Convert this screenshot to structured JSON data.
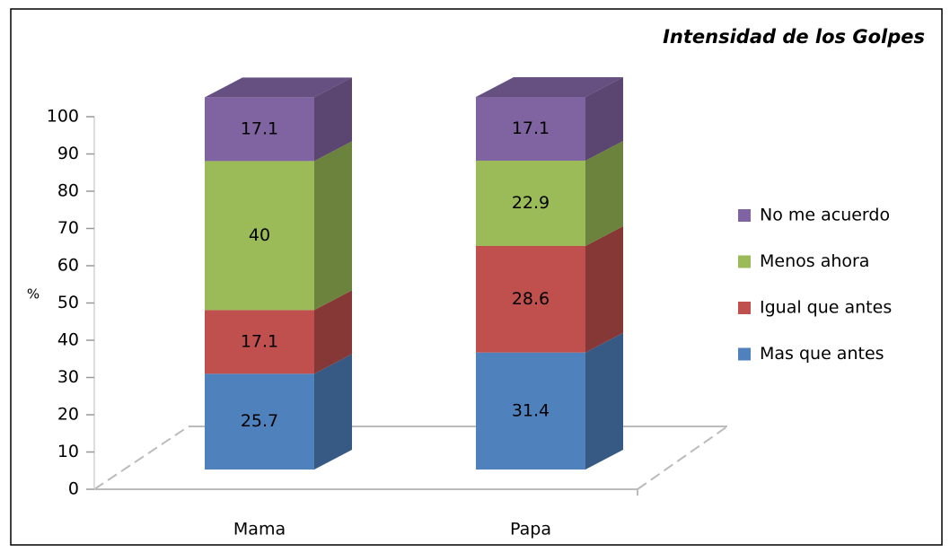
{
  "chart_data": {
    "type": "bar3d_stacked",
    "title": "Intensidad de los Golpes",
    "y_label": "%",
    "categories": [
      "Mama",
      "Papa"
    ],
    "series": [
      {
        "name": "Mas que antes",
        "color": "#4f81bd",
        "values": [
          25.7,
          31.4
        ]
      },
      {
        "name": "Igual que antes",
        "color": "#c0504d",
        "values": [
          17.1,
          28.6
        ]
      },
      {
        "name": "Menos ahora",
        "color": "#9bbb59",
        "values": [
          40,
          22.9
        ]
      },
      {
        "name": "No me acuerdo",
        "color": "#8064a2",
        "values": [
          17.1,
          17.1
        ]
      }
    ],
    "ylim": [
      0,
      100
    ],
    "yticks": [
      0,
      10,
      20,
      30,
      40,
      50,
      60,
      70,
      80,
      90,
      100
    ],
    "legend": "right"
  }
}
